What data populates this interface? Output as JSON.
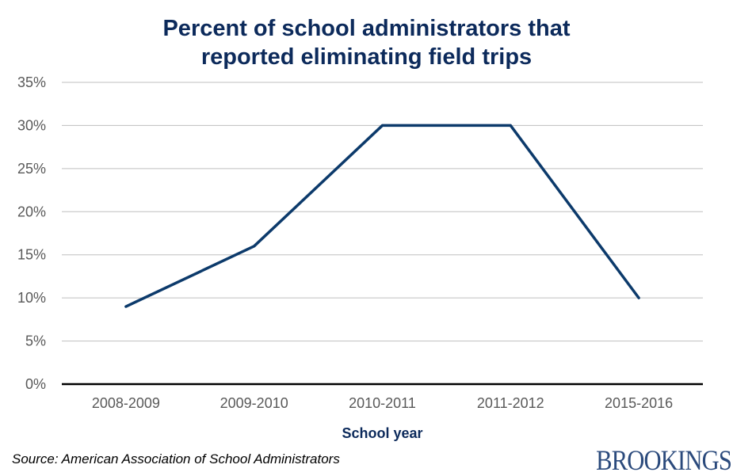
{
  "chart_data": {
    "type": "line",
    "title_lines": [
      "Percent of school administrators that",
      "reported eliminating field trips"
    ],
    "xlabel": "School year",
    "ylabel": "",
    "categories": [
      "2008-2009",
      "2009-2010",
      "2010-2011",
      "2011-2012",
      "2015-2016"
    ],
    "values": [
      9,
      16,
      30,
      30,
      10
    ],
    "ylim": [
      0,
      35
    ],
    "yticks": [
      0,
      5,
      10,
      15,
      20,
      25,
      30,
      35
    ],
    "ytick_labels": [
      "0%",
      "5%",
      "10%",
      "15%",
      "20%",
      "25%",
      "30%",
      "35%"
    ],
    "grid": true,
    "line_color": "#0c3a6b"
  },
  "source": "Source: American Association of School Administrators",
  "logo": "BROOKINGS"
}
